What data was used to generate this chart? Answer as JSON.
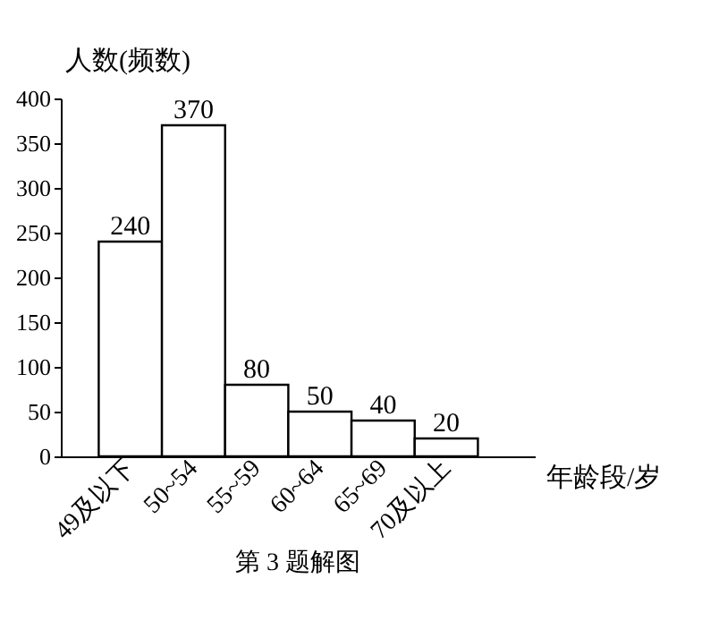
{
  "chart_data": {
    "type": "bar",
    "xlabel": "年龄段/岁",
    "ylabel": "人数(频数)",
    "categories": [
      "49及以下",
      "50~54",
      "55~59",
      "60~64",
      "65~69",
      "70及以上"
    ],
    "values": [
      240,
      370,
      80,
      50,
      40,
      20
    ],
    "color": "#ffffff",
    "ylim": [
      0,
      400
    ],
    "yticks": [
      0,
      50,
      100,
      150,
      200,
      250,
      300,
      350,
      400
    ],
    "data_labels": true,
    "grid": false,
    "annotations": [
      "第 3 题解图"
    ]
  }
}
